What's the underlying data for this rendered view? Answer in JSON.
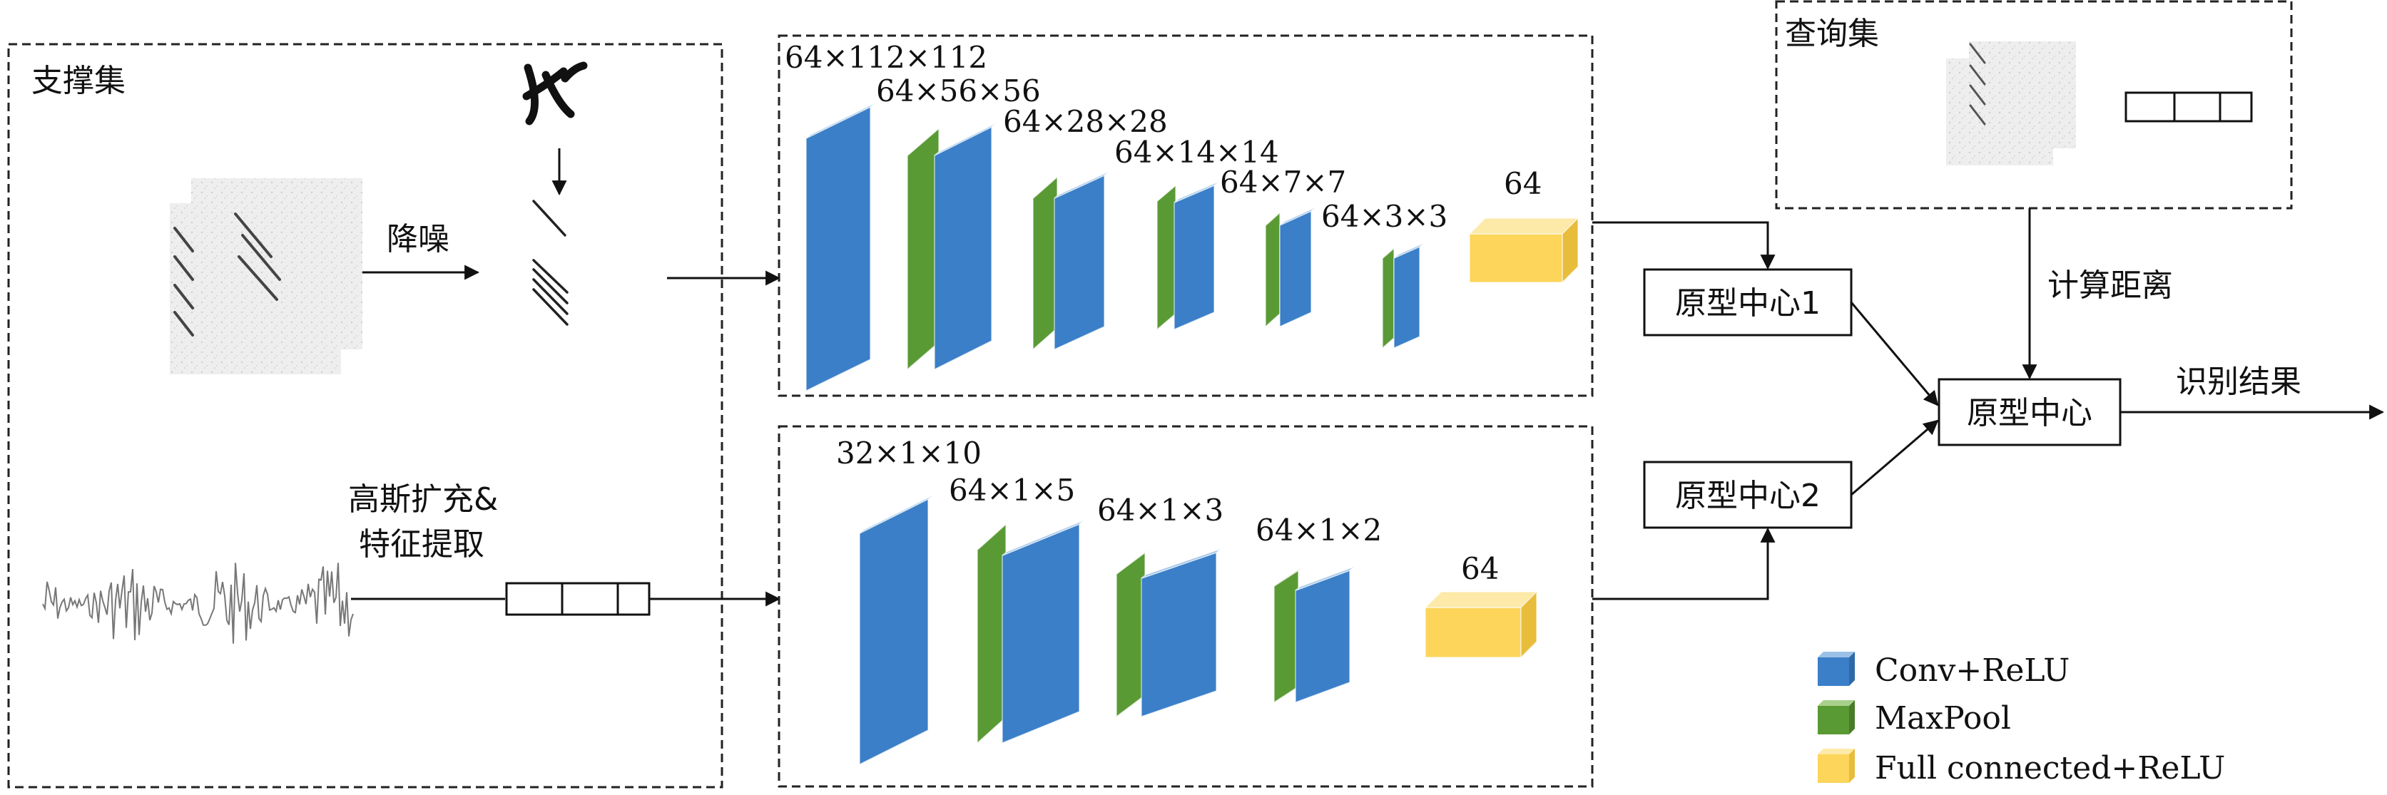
{
  "support_set": {
    "title": "支撑集",
    "denoise_label": "降噪",
    "gauss_label_line1": "高斯扩充&",
    "gauss_label_line2": "特征提取"
  },
  "query_set": {
    "title": "查询集"
  },
  "net1": {
    "dims": [
      "64×112×112",
      "64×56×56",
      "64×28×28",
      "64×14×14",
      "64×7×7",
      "64×3×3"
    ],
    "fc_label": "64"
  },
  "net2": {
    "dims": [
      "32×1×10",
      "64×1×5",
      "64×1×3",
      "64×1×2"
    ],
    "fc_label": "64"
  },
  "proto1": "原型中心1",
  "proto2": "原型中心2",
  "proto_main": "原型中心",
  "compute_distance": "计算距离",
  "result": "识别结果",
  "legend": [
    {
      "label": "Conv+ReLU",
      "color": "#3a7fc8"
    },
    {
      "label": "MaxPool",
      "color": "#5a9a35"
    },
    {
      "label": "Full connected+ReLU",
      "color": "#fcd55a"
    }
  ],
  "colors": {
    "conv": "#3a7fc8",
    "conv_top": "#9cc1e6",
    "pool": "#5a9a35",
    "pool_top": "#a8d08a",
    "fc": "#fcd55a",
    "fc_top": "#fde9a8",
    "fc_side": "#e8bd3c"
  }
}
